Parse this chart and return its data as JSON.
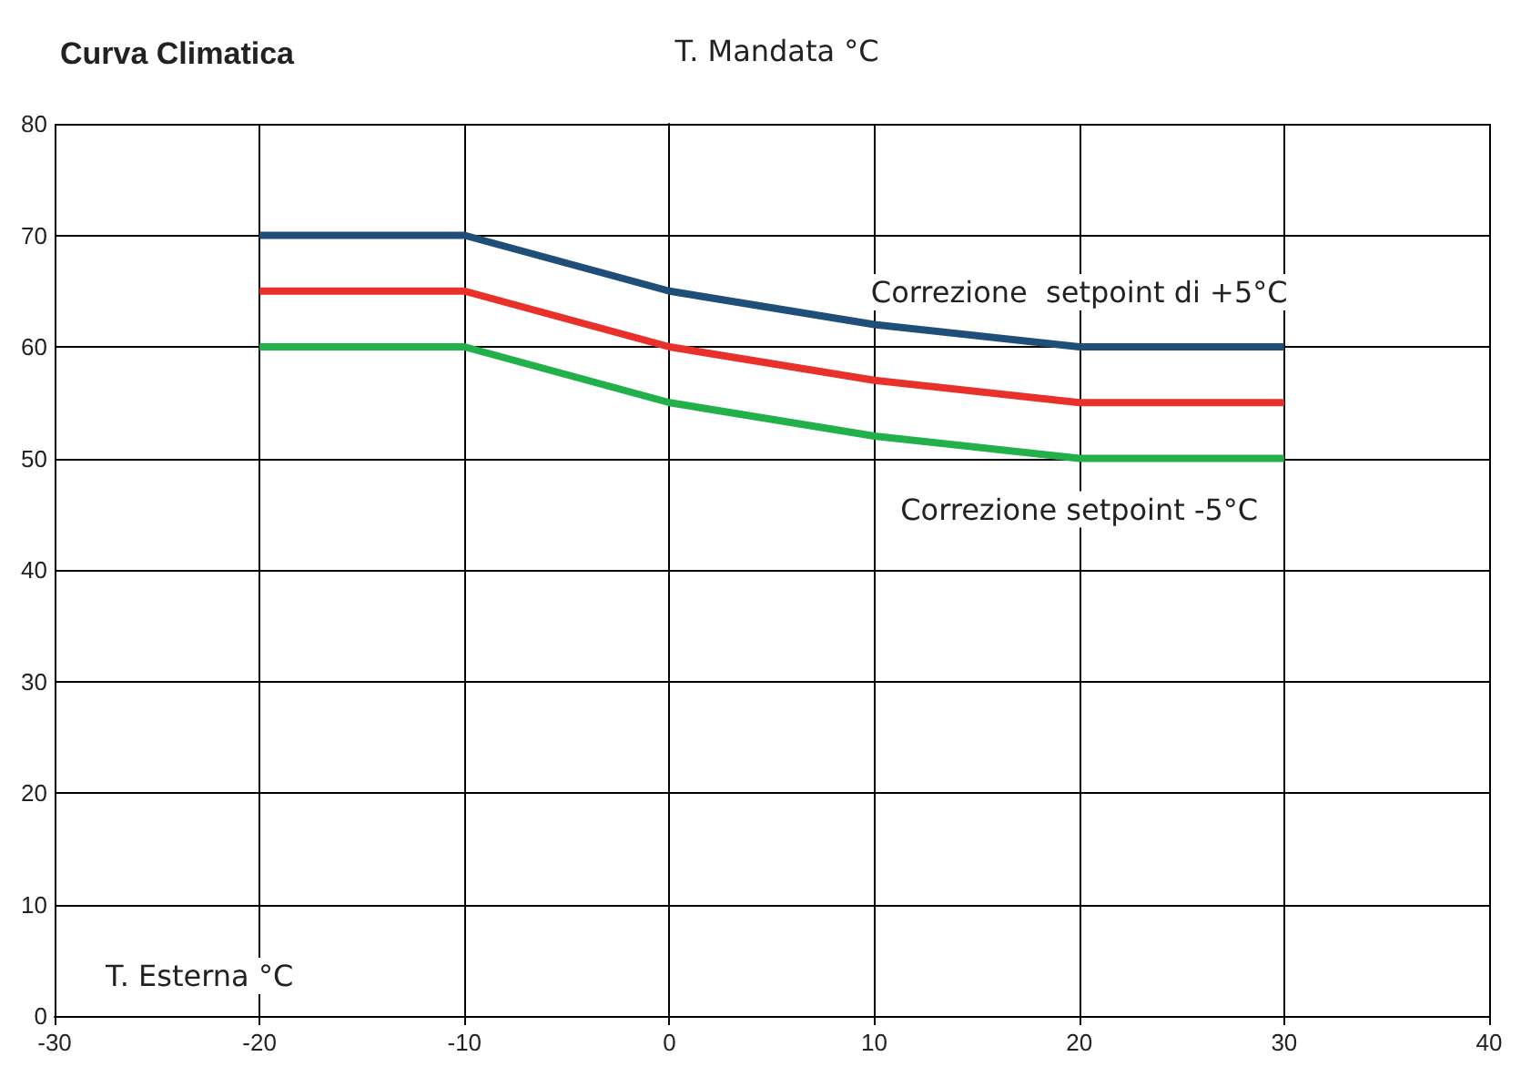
{
  "chart_data": {
    "type": "line",
    "title": "Curva Climatica",
    "xlabel": "T. Esterna °C",
    "ylabel": "T. Mandata °C",
    "x": [
      -20,
      -10,
      0,
      10,
      20,
      30
    ],
    "series": [
      {
        "color": "#1f4e79",
        "values": [
          70,
          70,
          65,
          62,
          60,
          60
        ]
      },
      {
        "color": "#e8312a",
        "values": [
          65,
          65,
          60,
          57,
          55,
          55
        ]
      },
      {
        "color": "#22b04b",
        "values": [
          60,
          60,
          55,
          52,
          50,
          50
        ]
      }
    ],
    "xlim": [
      -30,
      40
    ],
    "xticks": [
      -30,
      -20,
      -10,
      0,
      10,
      20,
      30,
      40
    ],
    "ylim": [
      0,
      80
    ],
    "yticks": [
      0,
      10,
      20,
      30,
      40,
      50,
      60,
      70,
      80
    ],
    "grid": true,
    "marker": "none",
    "line_style": "solid",
    "annotations": [
      {
        "text": "Correzione  setpoint di +5°C",
        "x": 20,
        "y": 60
      },
      {
        "text": "Correzione setpoint -5°C",
        "x": 20,
        "y": 50
      }
    ]
  }
}
